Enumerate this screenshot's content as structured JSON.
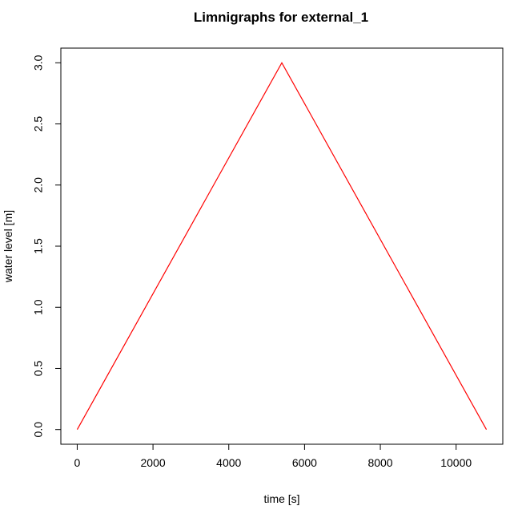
{
  "chart_data": {
    "type": "line",
    "title": "Limnigraphs for external_1",
    "xlabel": "time [s]",
    "ylabel": "water level [m]",
    "xlim": [
      -432,
      11232
    ],
    "ylim": [
      -0.12,
      3.12
    ],
    "xticks": [
      0,
      2000,
      4000,
      6000,
      8000,
      10000
    ],
    "xtick_labels": [
      "0",
      "2000",
      "4000",
      "6000",
      "8000",
      "10000"
    ],
    "yticks": [
      0,
      0.5,
      1,
      1.5,
      2,
      2.5,
      3
    ],
    "ytick_labels": [
      "0.0",
      "0.5",
      "1.0",
      "1.5",
      "2.0",
      "2.5",
      "3.0"
    ],
    "grid": false,
    "series": [
      {
        "color": "#ff0000",
        "x": [
          0,
          5400,
          10800
        ],
        "y": [
          0,
          3.0,
          0
        ]
      }
    ]
  }
}
